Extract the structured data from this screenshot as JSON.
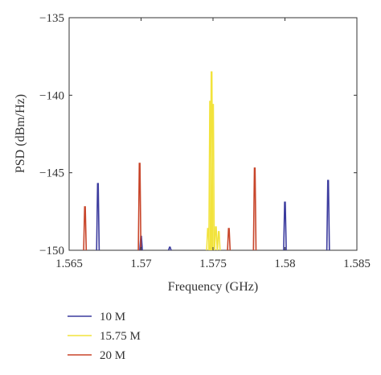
{
  "chart_data": {
    "type": "line",
    "title": "",
    "xlabel": "Frequency (GHz)",
    "ylabel": "PSD (dBm/Hz)",
    "xlim": [
      1.565,
      1.585
    ],
    "ylim": [
      -150,
      -135
    ],
    "xticks": [
      1.565,
      1.57,
      1.575,
      1.58,
      1.585
    ],
    "xtick_labels": [
      "1.565",
      "1.57",
      "1.575",
      "1.58",
      "1.585"
    ],
    "yticks": [
      -150,
      -145,
      -140,
      -135
    ],
    "ytick_labels": [
      "−150",
      "−145",
      "−140",
      "−135"
    ],
    "grid": false,
    "legend_position": "bottom-left, below plot",
    "series": [
      {
        "name": "10 M",
        "color": "#3b3b9e",
        "peaks": [
          {
            "x": 1.567,
            "y": -145.7
          },
          {
            "x": 1.57,
            "y": -149.1
          },
          {
            "x": 1.572,
            "y": -149.8
          },
          {
            "x": 1.58,
            "y": -146.9
          },
          {
            "x": 1.583,
            "y": -145.5
          }
        ]
      },
      {
        "name": "15.75 M",
        "color": "#f2e33c",
        "peaks": [
          {
            "x": 1.57465,
            "y": -148.6
          },
          {
            "x": 1.5748,
            "y": -140.4
          },
          {
            "x": 1.5749,
            "y": -138.5
          },
          {
            "x": 1.575,
            "y": -140.6
          },
          {
            "x": 1.5752,
            "y": -148.5
          },
          {
            "x": 1.5754,
            "y": -148.8
          }
        ]
      },
      {
        "name": "20 M",
        "color": "#c8452a",
        "peaks": [
          {
            "x": 1.5661,
            "y": -147.2
          },
          {
            "x": 1.5699,
            "y": -144.4
          },
          {
            "x": 1.5761,
            "y": -148.6
          },
          {
            "x": 1.5779,
            "y": -144.7
          }
        ]
      }
    ]
  }
}
